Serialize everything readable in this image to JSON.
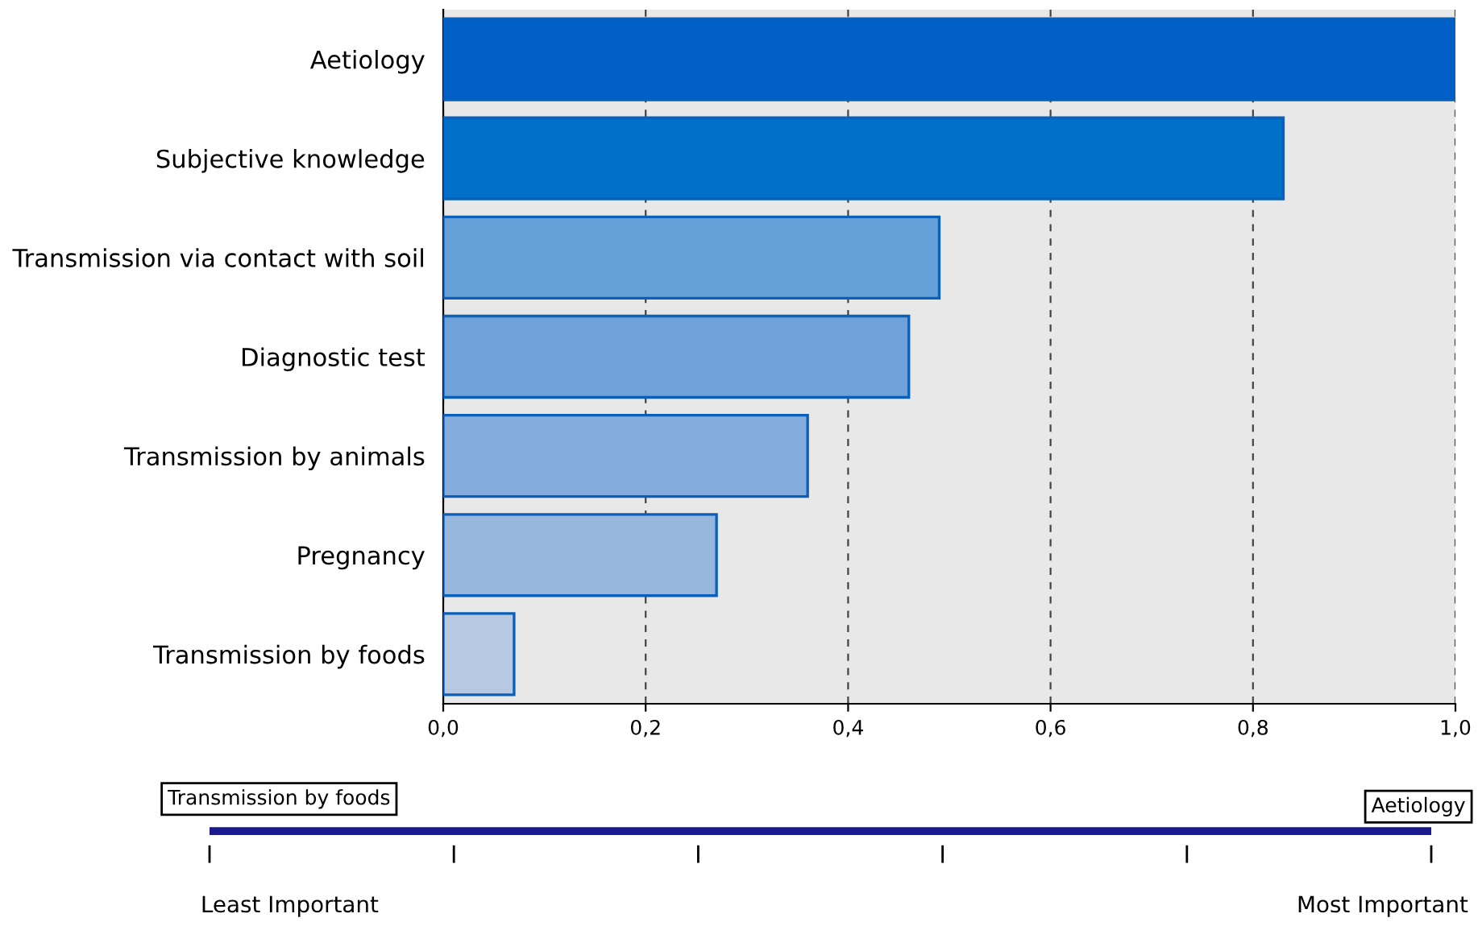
{
  "chart_data": {
    "type": "bar",
    "orientation": "horizontal",
    "categories": [
      "Aetiology",
      "Subjective knowledge",
      "Transmission via contact with soil",
      "Diagnostic test",
      "Transmission by animals",
      "Pregnancy",
      "Transmission by foods"
    ],
    "values": [
      1.0,
      0.83,
      0.49,
      0.46,
      0.36,
      0.27,
      0.07
    ],
    "colors": [
      "#0060c8",
      "#0070c8",
      "#66a0d8",
      "#6ea2d8",
      "#84acdc",
      "#96b6de",
      "#b6c8e2"
    ],
    "xlim": [
      0,
      1
    ],
    "xticks": [
      {
        "value": 0,
        "label": "0,0"
      },
      {
        "value": 0.2,
        "label": "0,2"
      },
      {
        "value": 0.4,
        "label": "0,4"
      },
      {
        "value": 0.6,
        "label": "0,6"
      },
      {
        "value": 0.8,
        "label": "0,8"
      },
      {
        "value": 1,
        "label": "1,0"
      }
    ],
    "grid": "x",
    "annotations": [
      "Transmission by foods",
      "Aetiology",
      "Least Important",
      "Most Important"
    ]
  }
}
